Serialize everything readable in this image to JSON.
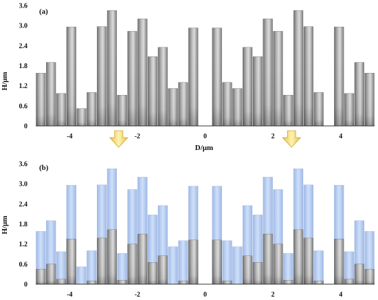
{
  "chart_data": [
    {
      "type": "bar",
      "panel_label": "(a)",
      "ylabel": "H/μm",
      "xlabel": "D/μm",
      "ylim": [
        0,
        3.6
      ],
      "xlim": [
        -5.0,
        5.0
      ],
      "yticks": [
        0,
        0.6,
        1.2,
        1.8,
        2.4,
        3.0,
        3.6
      ],
      "xticks": [
        -4,
        -2,
        0,
        2,
        4
      ],
      "series": [
        {
          "values": [
            {
              "x": -4.85,
              "h": 1.58
            },
            {
              "x": -4.55,
              "h": 1.9
            },
            {
              "x": -4.25,
              "h": 0.97
            },
            {
              "x": -3.95,
              "h": 2.96
            },
            {
              "x": -3.65,
              "h": 0.52
            },
            {
              "x": -3.35,
              "h": 1.0
            },
            {
              "x": -3.05,
              "h": 2.97
            },
            {
              "x": -2.75,
              "h": 3.45
            },
            {
              "x": -2.45,
              "h": 0.92
            },
            {
              "x": -2.15,
              "h": 2.83
            },
            {
              "x": -1.85,
              "h": 3.2
            },
            {
              "x": -1.55,
              "h": 2.07
            },
            {
              "x": -1.25,
              "h": 2.35
            },
            {
              "x": -0.95,
              "h": 1.12
            },
            {
              "x": -0.65,
              "h": 1.3
            },
            {
              "x": -0.35,
              "h": 2.93
            },
            {
              "x": 0.35,
              "h": 2.93
            },
            {
              "x": 0.65,
              "h": 1.3
            },
            {
              "x": 0.95,
              "h": 1.12
            },
            {
              "x": 1.25,
              "h": 2.35
            },
            {
              "x": 1.55,
              "h": 2.07
            },
            {
              "x": 1.85,
              "h": 3.2
            },
            {
              "x": 2.15,
              "h": 2.83
            },
            {
              "x": 2.45,
              "h": 0.92
            },
            {
              "x": 2.75,
              "h": 3.45
            },
            {
              "x": 3.05,
              "h": 2.97
            },
            {
              "x": 3.35,
              "h": 1.0
            },
            {
              "x": 3.95,
              "h": 2.96
            },
            {
              "x": 4.25,
              "h": 0.97
            },
            {
              "x": 4.55,
              "h": 1.9
            },
            {
              "x": 4.85,
              "h": 1.58
            }
          ]
        }
      ],
      "bar_width": 0.3,
      "colors": {
        "bar_dark": "#8a8a8a",
        "bar_light": "#d2d2d2"
      }
    },
    {
      "type": "bar",
      "panel_label": "(b)",
      "ylabel": "H/μm",
      "xlabel": "",
      "ylim": [
        0,
        3.6
      ],
      "xlim": [
        -5.0,
        5.0
      ],
      "yticks": [
        0,
        0.6,
        1.2,
        1.8,
        2.4,
        3.0,
        3.6
      ],
      "xticks": [
        -4,
        -2,
        0,
        2,
        4
      ],
      "series": [
        {
          "values": [
            {
              "x": -4.85,
              "h": 1.58
            },
            {
              "x": -4.55,
              "h": 1.9
            },
            {
              "x": -4.25,
              "h": 0.97
            },
            {
              "x": -3.95,
              "h": 2.96
            },
            {
              "x": -3.65,
              "h": 0.52
            },
            {
              "x": -3.35,
              "h": 1.0
            },
            {
              "x": -3.05,
              "h": 2.97
            },
            {
              "x": -2.75,
              "h": 3.45
            },
            {
              "x": -2.45,
              "h": 0.92
            },
            {
              "x": -2.15,
              "h": 2.83
            },
            {
              "x": -1.85,
              "h": 3.2
            },
            {
              "x": -1.55,
              "h": 2.07
            },
            {
              "x": -1.25,
              "h": 2.35
            },
            {
              "x": -0.95,
              "h": 1.12
            },
            {
              "x": -0.65,
              "h": 1.3
            },
            {
              "x": -0.35,
              "h": 2.93
            },
            {
              "x": 0.35,
              "h": 2.93
            },
            {
              "x": 0.65,
              "h": 1.3
            },
            {
              "x": 0.95,
              "h": 1.12
            },
            {
              "x": 1.25,
              "h": 2.35
            },
            {
              "x": 1.55,
              "h": 2.07
            },
            {
              "x": 1.85,
              "h": 3.2
            },
            {
              "x": 2.15,
              "h": 2.83
            },
            {
              "x": 2.45,
              "h": 0.92
            },
            {
              "x": 2.75,
              "h": 3.45
            },
            {
              "x": 3.05,
              "h": 2.97
            },
            {
              "x": 3.35,
              "h": 1.0
            },
            {
              "x": 3.95,
              "h": 2.96
            },
            {
              "x": 4.25,
              "h": 0.97
            },
            {
              "x": 4.55,
              "h": 1.9
            },
            {
              "x": 4.85,
              "h": 1.58
            }
          ]
        },
        {
          "values": [
            {
              "x": -4.85,
              "h": 0.45
            },
            {
              "x": -4.55,
              "h": 0.6
            },
            {
              "x": -4.25,
              "h": 0.15
            },
            {
              "x": -3.95,
              "h": 1.35
            },
            {
              "x": -3.65,
              "h": 0.0
            },
            {
              "x": -3.35,
              "h": 0.1
            },
            {
              "x": -3.05,
              "h": 1.38
            },
            {
              "x": -2.75,
              "h": 1.63
            },
            {
              "x": -2.45,
              "h": 0.12
            },
            {
              "x": -2.15,
              "h": 1.2
            },
            {
              "x": -1.85,
              "h": 1.5
            },
            {
              "x": -1.55,
              "h": 0.65
            },
            {
              "x": -1.25,
              "h": 0.85
            },
            {
              "x": -0.95,
              "h": 0.0
            },
            {
              "x": -0.65,
              "h": 0.1
            },
            {
              "x": -0.35,
              "h": 1.32
            },
            {
              "x": 0.35,
              "h": 1.32
            },
            {
              "x": 0.65,
              "h": 0.1
            },
            {
              "x": 0.95,
              "h": 0.0
            },
            {
              "x": 1.25,
              "h": 0.85
            },
            {
              "x": 1.55,
              "h": 0.65
            },
            {
              "x": 1.85,
              "h": 1.5
            },
            {
              "x": 2.15,
              "h": 1.2
            },
            {
              "x": 2.45,
              "h": 0.12
            },
            {
              "x": 2.75,
              "h": 1.63
            },
            {
              "x": 3.05,
              "h": 1.38
            },
            {
              "x": 3.35,
              "h": 0.1
            },
            {
              "x": 3.95,
              "h": 1.35
            },
            {
              "x": 4.25,
              "h": 0.15
            },
            {
              "x": 4.55,
              "h": 0.6
            },
            {
              "x": 4.85,
              "h": 0.45
            }
          ]
        }
      ],
      "bar_width": 0.3,
      "colors": {
        "bar_dark": "#8a8a8a",
        "bar_light": "#d2d2d2",
        "ghost": "#b8cdf2"
      }
    }
  ],
  "arrow_positions_x": [
    -2.55,
    2.55
  ],
  "arrow_color": "#f5d76e"
}
